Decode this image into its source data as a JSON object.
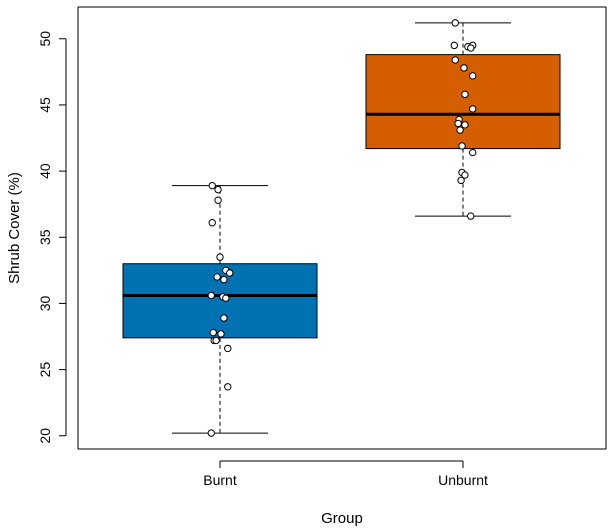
{
  "chart_data": {
    "type": "boxplot",
    "title": "",
    "xlabel": "Group",
    "ylabel": "Shrub Cover (%)",
    "ylim": [
      19,
      52.4
    ],
    "yticks": [
      20,
      25,
      30,
      35,
      40,
      45,
      50
    ],
    "categories": [
      "Burnt",
      "Unburnt"
    ],
    "colors": [
      "#0072B2",
      "#D55E00"
    ],
    "boxes": [
      {
        "group": "Burnt",
        "whisker_low": 20.2,
        "q1": 27.4,
        "median": 30.6,
        "q3": 33.0,
        "whisker_high": 38.9,
        "points": [
          {
            "x": -0.08,
            "y": 38.9
          },
          {
            "x": -0.02,
            "y": 38.6
          },
          {
            "x": -0.02,
            "y": 37.8
          },
          {
            "x": -0.08,
            "y": 36.1
          },
          {
            "x": 0.0,
            "y": 33.5
          },
          {
            "x": 0.06,
            "y": 32.5
          },
          {
            "x": 0.1,
            "y": 32.3
          },
          {
            "x": -0.03,
            "y": 32.0
          },
          {
            "x": 0.04,
            "y": 31.8
          },
          {
            "x": -0.09,
            "y": 30.6
          },
          {
            "x": 0.03,
            "y": 30.5
          },
          {
            "x": 0.06,
            "y": 30.4
          },
          {
            "x": 0.04,
            "y": 28.9
          },
          {
            "x": -0.07,
            "y": 27.8
          },
          {
            "x": 0.01,
            "y": 27.7
          },
          {
            "x": -0.06,
            "y": 27.2
          },
          {
            "x": -0.04,
            "y": 27.2
          },
          {
            "x": 0.08,
            "y": 26.6
          },
          {
            "x": 0.08,
            "y": 23.7
          },
          {
            "x": -0.09,
            "y": 20.2
          }
        ]
      },
      {
        "group": "Unburnt",
        "whisker_low": 36.6,
        "q1": 41.7,
        "median": 44.3,
        "q3": 48.8,
        "whisker_high": 51.2,
        "points": [
          {
            "x": -0.08,
            "y": 51.2
          },
          {
            "x": -0.09,
            "y": 49.5
          },
          {
            "x": 0.05,
            "y": 49.4
          },
          {
            "x": 0.1,
            "y": 49.5
          },
          {
            "x": 0.08,
            "y": 49.3
          },
          {
            "x": -0.08,
            "y": 48.4
          },
          {
            "x": 0.01,
            "y": 47.8
          },
          {
            "x": 0.1,
            "y": 47.2
          },
          {
            "x": 0.02,
            "y": 45.8
          },
          {
            "x": 0.1,
            "y": 44.7
          },
          {
            "x": -0.04,
            "y": 43.9
          },
          {
            "x": -0.05,
            "y": 43.6
          },
          {
            "x": 0.02,
            "y": 43.5
          },
          {
            "x": -0.03,
            "y": 43.1
          },
          {
            "x": -0.01,
            "y": 41.9
          },
          {
            "x": 0.1,
            "y": 41.4
          },
          {
            "x": -0.01,
            "y": 39.9
          },
          {
            "x": 0.02,
            "y": 39.7
          },
          {
            "x": -0.02,
            "y": 39.3
          },
          {
            "x": 0.08,
            "y": 36.6
          }
        ]
      }
    ]
  }
}
